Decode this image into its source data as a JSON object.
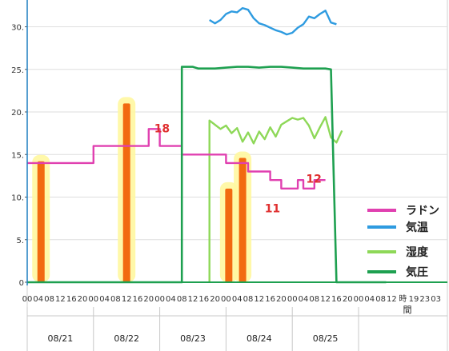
{
  "chart_data": {
    "type": "line",
    "ylim": [
      0,
      33
    ],
    "yticks": [
      "0",
      "5.",
      "10.",
      "15.",
      "20.",
      "25.",
      "30."
    ],
    "x_hour_ticks": [
      "00",
      "04",
      "08",
      "12",
      "16",
      "20",
      "00",
      "04",
      "08",
      "12",
      "16",
      "20",
      "00",
      "04",
      "08",
      "12",
      "16",
      "20",
      "00",
      "04",
      "08",
      "12",
      "16",
      "20",
      "00",
      "04",
      "08",
      "12",
      "16",
      "20",
      "00",
      "04",
      "08",
      "12",
      "時",
      "19",
      "23",
      "03"
    ],
    "x_unit": "間",
    "x_dates": [
      "08/21",
      "08/22",
      "08/23",
      "08/24",
      "08/25"
    ],
    "series": [
      {
        "name": "ラドン",
        "color": "#e040b0",
        "points": [
          [
            0,
            14
          ],
          [
            24,
            14
          ],
          [
            24,
            16
          ],
          [
            44,
            16
          ],
          [
            44,
            18
          ],
          [
            48,
            18
          ],
          [
            48,
            16
          ],
          [
            56,
            16
          ],
          [
            56,
            15
          ],
          [
            66,
            15
          ],
          [
            72,
            15
          ],
          [
            72,
            14
          ],
          [
            80,
            14
          ],
          [
            80,
            13
          ],
          [
            88,
            13
          ],
          [
            88,
            12
          ],
          [
            92,
            12
          ],
          [
            92,
            11
          ],
          [
            98,
            11
          ],
          [
            98,
            12
          ],
          [
            100,
            12
          ],
          [
            100,
            11
          ],
          [
            104,
            11
          ],
          [
            104,
            12
          ],
          [
            108,
            12
          ]
        ]
      },
      {
        "name": "気温",
        "color": "#2e9be0",
        "points": [
          [
            66,
            30.8
          ],
          [
            68,
            30.4
          ],
          [
            70,
            30.8
          ],
          [
            72,
            31.5
          ],
          [
            74,
            31.8
          ],
          [
            76,
            31.7
          ],
          [
            78,
            32.2
          ],
          [
            80,
            32
          ],
          [
            82,
            31
          ],
          [
            84,
            30.4
          ],
          [
            86,
            30.2
          ],
          [
            88,
            29.9
          ],
          [
            90,
            29.6
          ],
          [
            92,
            29.4
          ],
          [
            94,
            29.1
          ],
          [
            96,
            29.3
          ],
          [
            98,
            29.9
          ],
          [
            100,
            30.3
          ],
          [
            102,
            31.2
          ],
          [
            104,
            31
          ],
          [
            106,
            31.5
          ],
          [
            108,
            31.9
          ],
          [
            110,
            30.5
          ],
          [
            112,
            30.3
          ]
        ]
      },
      {
        "name": "湿度",
        "color": "#8ed858",
        "points": [
          [
            66,
            0
          ],
          [
            66,
            19
          ],
          [
            68,
            18.5
          ],
          [
            70,
            18
          ],
          [
            72,
            18.4
          ],
          [
            74,
            17.5
          ],
          [
            76,
            18.1
          ],
          [
            78,
            16.5
          ],
          [
            80,
            17.6
          ],
          [
            82,
            16.3
          ],
          [
            84,
            17.7
          ],
          [
            86,
            16.8
          ],
          [
            88,
            18.2
          ],
          [
            90,
            17.1
          ],
          [
            92,
            18.5
          ],
          [
            94,
            18.9
          ],
          [
            96,
            19.3
          ],
          [
            98,
            19.1
          ],
          [
            100,
            19.3
          ],
          [
            102,
            18.4
          ],
          [
            104,
            16.9
          ],
          [
            106,
            18.2
          ],
          [
            108,
            19.4
          ],
          [
            110,
            17
          ],
          [
            112,
            16.4
          ],
          [
            114,
            17.8
          ]
        ]
      },
      {
        "name": "気圧",
        "color": "#1ea050",
        "points": [
          [
            0,
            0
          ],
          [
            56,
            0
          ],
          [
            56,
            25.3
          ],
          [
            60,
            25.3
          ],
          [
            62,
            25.1
          ],
          [
            68,
            25.1
          ],
          [
            72,
            25.2
          ],
          [
            76,
            25.3
          ],
          [
            80,
            25.3
          ],
          [
            84,
            25.2
          ],
          [
            88,
            25.3
          ],
          [
            92,
            25.3
          ],
          [
            96,
            25.2
          ],
          [
            100,
            25.1
          ],
          [
            104,
            25.1
          ],
          [
            108,
            25.1
          ],
          [
            110,
            25
          ],
          [
            112,
            0
          ],
          [
            130,
            0
          ]
        ]
      }
    ],
    "events": [
      {
        "x": 5,
        "value": 14.2
      },
      {
        "x": 36,
        "value": 21
      },
      {
        "x": 73,
        "value": 11
      },
      {
        "x": 78,
        "value": 14.6
      }
    ],
    "annotations": [
      {
        "text": "18",
        "x": 46,
        "y": 17.6
      },
      {
        "text": "12",
        "x": 101,
        "y": 11.7
      },
      {
        "text": "11",
        "x": 86,
        "y": 8.2
      }
    ]
  }
}
